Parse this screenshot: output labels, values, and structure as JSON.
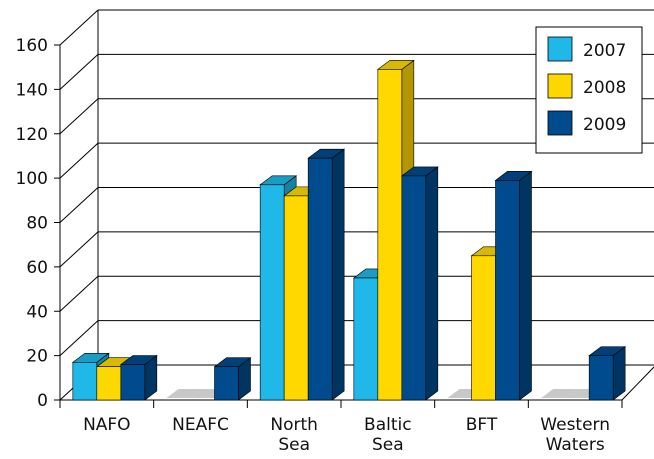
{
  "chart_data": {
    "type": "bar",
    "title": "",
    "xlabel": "",
    "ylabel": "",
    "ylim": [
      0,
      160
    ],
    "yticks": [
      0,
      20,
      40,
      60,
      80,
      100,
      120,
      140,
      160
    ],
    "categories": [
      [
        "NAFO"
      ],
      [
        "NEAFC"
      ],
      [
        "North",
        "Sea"
      ],
      [
        "Baltic",
        "Sea"
      ],
      [
        "BFT"
      ],
      [
        "Western",
        "Waters"
      ]
    ],
    "series": [
      {
        "name": "2007",
        "color": "#1fb8e8",
        "values": [
          17,
          0,
          97,
          55,
          0,
          0
        ]
      },
      {
        "name": "2008",
        "color": "#ffd800",
        "values": [
          15,
          0,
          92,
          149,
          65,
          0
        ]
      },
      {
        "name": "2009",
        "color": "#004b8d",
        "values": [
          16,
          15,
          109,
          101,
          99,
          20
        ]
      }
    ],
    "grid": true,
    "style": "3d",
    "legend_position": "top-right"
  }
}
